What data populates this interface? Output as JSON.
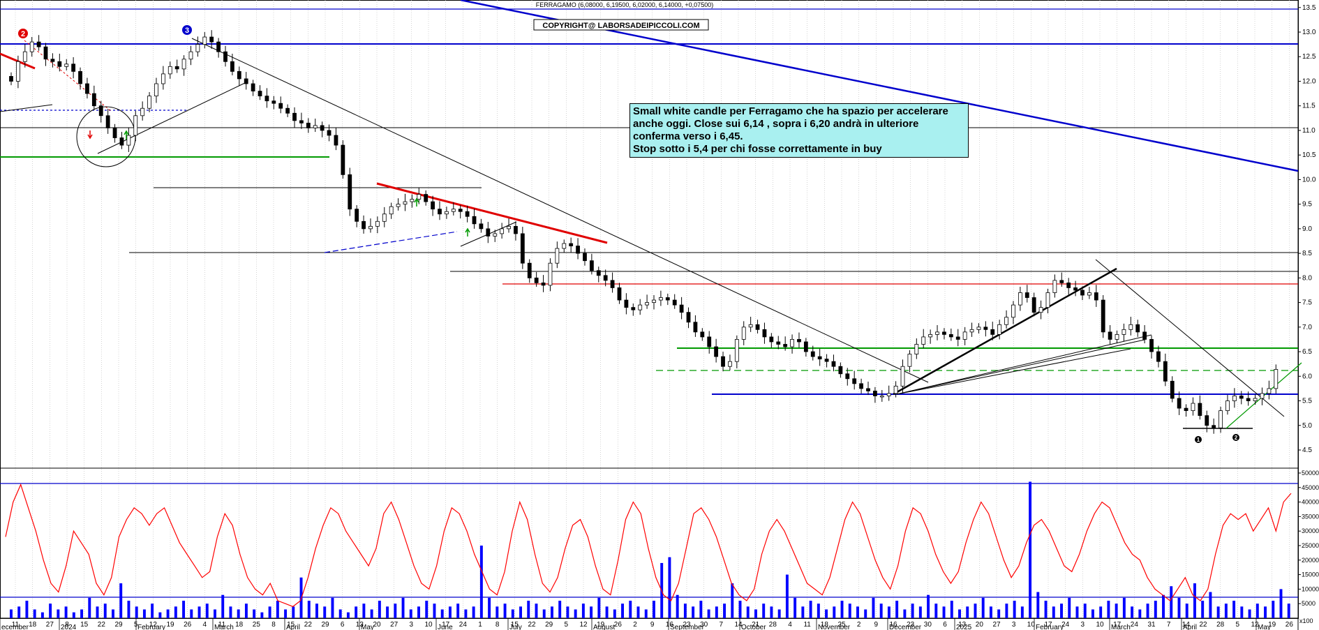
{
  "header": {
    "ticker_line": "FERRAGAMO (6,08000, 6,19500, 6,02000, 6,14000, +0,07500)",
    "copyright": "COPYRIGHT@ LABORSADEIPICCOLI.COM"
  },
  "annotation": {
    "lines": [
      "Small white candle per Ferragamo che ha spazio per accelerare",
      "anche oggi. Close sui 6,14 , sopra i 6,20 andrà in ulteriore",
      "conferma verso i 6,45.",
      "Stop sotto i 5,4 per chi fosse correttamente in buy"
    ]
  },
  "markers": [
    {
      "label": "2",
      "color": "#e00000"
    },
    {
      "label": "3",
      "color": "#0000cc"
    },
    {
      "label": "1",
      "color": "#000000"
    },
    {
      "label": "2",
      "color": "#000000"
    }
  ],
  "colors": {
    "blue": "#0000cc",
    "red": "#e00000",
    "green": "#009900",
    "candle_up": "#ffffff",
    "candle_down": "#000000",
    "oscillator": "#ff0000",
    "volume": "#0000ff"
  },
  "chart_data": [
    {
      "type": "candlestick",
      "title": "FERRAGAMO (6,08000, 6,19500, 6,02000, 6,14000, +0,07500)",
      "ylim": [
        4.0,
        13.6
      ],
      "yticks": [
        "4.5",
        "5.0",
        "5.5",
        "6.0",
        "6.5",
        "7.0",
        "7.5",
        "8.0",
        "8.5",
        "9.0",
        "9.5",
        "10.0",
        "10.5",
        "11.0",
        "11.5",
        "12.0",
        "12.5",
        "13.0",
        "13.5"
      ],
      "xticks": [
        "11",
        "18",
        "27",
        "8",
        "15",
        "22",
        "29",
        "5",
        "12",
        "19",
        "26",
        "4",
        "11",
        "18",
        "25",
        "8",
        "15",
        "22",
        "29",
        "6",
        "13",
        "20",
        "27",
        "3",
        "10",
        "17",
        "24",
        "1",
        "8",
        "15",
        "22",
        "29",
        "5",
        "12",
        "19",
        "26",
        "2",
        "9",
        "16",
        "23",
        "30",
        "7",
        "14",
        "21",
        "28",
        "4",
        "11",
        "18",
        "25",
        "2",
        "9",
        "16",
        "23",
        "30",
        "6",
        "13",
        "20",
        "27",
        "3",
        "10",
        "17",
        "24",
        "3",
        "10",
        "17",
        "24",
        "31",
        "7",
        "14",
        "22",
        "28",
        "5",
        "12",
        "19",
        "26"
      ],
      "xlabels_months": [
        "ecember",
        "2024",
        "February",
        "March",
        "April",
        "May",
        "June",
        "July",
        "August",
        "September",
        "October",
        "November",
        "December",
        "2025",
        "February",
        "March",
        "April",
        "May"
      ],
      "last": {
        "open": 6.08,
        "high": 6.195,
        "low": 6.02,
        "close": 6.14,
        "change": 0.075
      },
      "close_series": [
        12.0,
        12.4,
        12.6,
        12.8,
        12.7,
        12.45,
        12.4,
        12.3,
        12.35,
        12.2,
        11.95,
        11.75,
        11.5,
        11.3,
        11.05,
        10.85,
        10.7,
        10.9,
        11.3,
        11.45,
        11.7,
        11.95,
        12.15,
        12.3,
        12.25,
        12.45,
        12.6,
        12.75,
        12.9,
        12.8,
        12.6,
        12.4,
        12.2,
        12.05,
        11.95,
        11.8,
        11.7,
        11.6,
        11.55,
        11.45,
        11.35,
        11.2,
        11.15,
        11.05,
        11.1,
        11.0,
        10.9,
        10.7,
        10.1,
        9.4,
        9.15,
        9.0,
        9.05,
        9.15,
        9.3,
        9.45,
        9.5,
        9.55,
        9.6,
        9.7,
        9.55,
        9.4,
        9.3,
        9.35,
        9.4,
        9.35,
        9.25,
        9.1,
        9.0,
        8.85,
        8.9,
        9.0,
        9.05,
        8.9,
        8.3,
        8.0,
        7.9,
        7.85,
        8.3,
        8.6,
        8.7,
        8.65,
        8.5,
        8.35,
        8.15,
        8.05,
        7.95,
        7.8,
        7.55,
        7.4,
        7.35,
        7.45,
        7.5,
        7.55,
        7.6,
        7.55,
        7.45,
        7.3,
        7.1,
        6.9,
        6.8,
        6.6,
        6.4,
        6.2,
        6.3,
        6.75,
        7.0,
        7.05,
        6.95,
        6.8,
        6.7,
        6.65,
        6.6,
        6.75,
        6.7,
        6.5,
        6.4,
        6.35,
        6.3,
        6.2,
        6.05,
        5.95,
        5.85,
        5.75,
        5.7,
        5.6,
        5.6,
        5.65,
        5.8,
        6.2,
        6.45,
        6.65,
        6.8,
        6.85,
        6.9,
        6.85,
        6.8,
        6.75,
        6.9,
        6.95,
        7.0,
        6.95,
        6.85,
        7.05,
        7.2,
        7.45,
        7.7,
        7.6,
        7.3,
        7.4,
        7.7,
        7.95,
        7.9,
        7.8,
        7.75,
        7.65,
        7.7,
        7.55,
        6.9,
        6.75,
        6.85,
        6.95,
        7.05,
        6.9,
        6.75,
        6.5,
        6.3,
        5.9,
        5.55,
        5.35,
        5.3,
        5.45,
        5.2,
        5.0,
        4.95,
        5.3,
        5.5,
        5.6,
        5.55,
        5.5,
        5.55,
        5.65,
        5.75,
        6.14
      ],
      "series": [
        {
          "name": "",
          "kind": "price"
        }
      ]
    },
    {
      "type": "line",
      "ylim": [
        0,
        51000
      ],
      "yticks": [
        "5000",
        "10000",
        "15000",
        "20000",
        "25000",
        "30000",
        "35000",
        "40000",
        "45000",
        "50000"
      ],
      "y_unit": "x100",
      "series": [
        {
          "name": "",
          "kind": "oscillator",
          "values": [
            28000,
            40000,
            46000,
            38000,
            30000,
            20000,
            12000,
            9000,
            18000,
            30000,
            26000,
            22000,
            12000,
            8000,
            14000,
            28000,
            34000,
            38000,
            36000,
            32000,
            36000,
            38000,
            32000,
            26000,
            22000,
            18000,
            14000,
            16000,
            28000,
            36000,
            32000,
            22000,
            14000,
            10000,
            8000,
            12000,
            6000,
            5000,
            4000,
            6000,
            14000,
            24000,
            32000,
            38000,
            36000,
            30000,
            26000,
            22000,
            18000,
            24000,
            36000,
            40000,
            34000,
            26000,
            18000,
            12000,
            10000,
            18000,
            30000,
            38000,
            36000,
            30000,
            22000,
            16000,
            10000,
            8000,
            16000,
            30000,
            40000,
            34000,
            22000,
            12000,
            9000,
            14000,
            24000,
            32000,
            34000,
            28000,
            18000,
            10000,
            8000,
            20000,
            34000,
            40000,
            36000,
            24000,
            14000,
            8000,
            6000,
            12000,
            24000,
            36000,
            38000,
            34000,
            28000,
            20000,
            12000,
            8000,
            6000,
            10000,
            22000,
            30000,
            34000,
            30000,
            24000,
            18000,
            12000,
            10000,
            8000,
            14000,
            24000,
            34000,
            40000,
            36000,
            28000,
            20000,
            14000,
            10000,
            18000,
            30000,
            38000,
            36000,
            30000,
            22000,
            16000,
            12000,
            16000,
            26000,
            34000,
            40000,
            36000,
            28000,
            20000,
            14000,
            18000,
            26000,
            32000,
            34000,
            30000,
            24000,
            18000,
            16000,
            22000,
            30000,
            36000,
            40000,
            38000,
            32000,
            26000,
            22000,
            20000,
            14000,
            10000,
            8000,
            6000,
            10000,
            14000,
            8000,
            6000,
            10000,
            22000,
            32000,
            36000,
            34000,
            36000,
            30000,
            34000,
            38000,
            30000,
            40000,
            43000
          ]
        }
      ]
    },
    {
      "type": "bar",
      "ylim": [
        0,
        51000
      ],
      "y_unit": "x100",
      "series": [
        {
          "name": "",
          "kind": "volume",
          "values": [
            3000,
            4000,
            6000,
            3000,
            2000,
            5000,
            3000,
            4000,
            2000,
            3000,
            7000,
            4000,
            5000,
            3000,
            12000,
            6000,
            4000,
            3000,
            5000,
            2000,
            3000,
            4000,
            6000,
            3000,
            4000,
            5000,
            3000,
            8000,
            4000,
            3000,
            5000,
            3000,
            2000,
            4000,
            6000,
            3000,
            4000,
            14000,
            6000,
            5000,
            4000,
            7000,
            3000,
            2000,
            4000,
            5000,
            3000,
            6000,
            4000,
            5000,
            7000,
            3000,
            4000,
            6000,
            5000,
            3000,
            4000,
            5000,
            3000,
            4000,
            25000,
            7000,
            4000,
            5000,
            3000,
            4000,
            6000,
            5000,
            3000,
            4000,
            6000,
            4000,
            3000,
            5000,
            4000,
            7000,
            4000,
            3000,
            5000,
            6000,
            4000,
            3000,
            6000,
            19000,
            21000,
            8000,
            5000,
            4000,
            6000,
            3000,
            4000,
            5000,
            12000,
            6000,
            4000,
            3000,
            5000,
            4000,
            3000,
            15000,
            7000,
            4000,
            6000,
            5000,
            3000,
            4000,
            6000,
            5000,
            4000,
            3000,
            7000,
            5000,
            4000,
            6000,
            3000,
            5000,
            4000,
            8000,
            5000,
            4000,
            6000,
            3000,
            4000,
            5000,
            7000,
            4000,
            3000,
            5000,
            6000,
            4000,
            47000,
            9000,
            6000,
            4000,
            5000,
            7000,
            4000,
            5000,
            3000,
            4000,
            6000,
            5000,
            7000,
            4000,
            3000,
            5000,
            6000,
            8000,
            11000,
            7000,
            5000,
            12000,
            6000,
            9000,
            4000,
            5000,
            6000,
            4000,
            3000,
            5000,
            4000,
            6000,
            10000,
            5000
          ]
        }
      ]
    }
  ]
}
